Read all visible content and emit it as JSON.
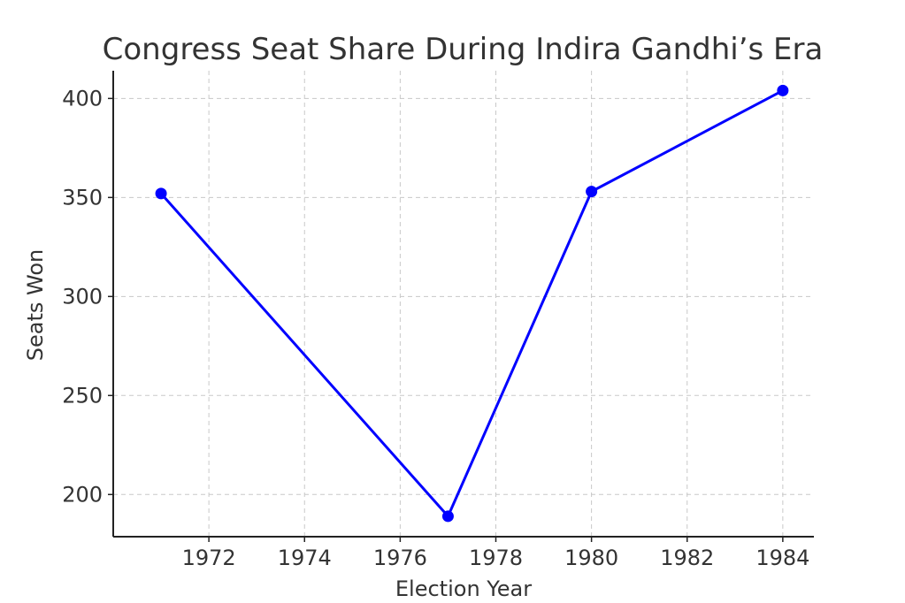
{
  "chart_data": {
    "type": "line",
    "title": "Congress Seat Share During Indira Gandhi’s Era",
    "xlabel": "Election Year",
    "ylabel": "Seats Won",
    "x": [
      1971,
      1977,
      1980,
      1984
    ],
    "series": [
      {
        "values": [
          352,
          189,
          353,
          404
        ],
        "color": "#0000ff",
        "marker": "circle"
      }
    ],
    "xticks": [
      1972,
      1974,
      1976,
      1978,
      1980,
      1982,
      1984
    ],
    "yticks": [
      200,
      250,
      300,
      350,
      400
    ],
    "xlim": [
      1970.0,
      1984.65
    ],
    "ylim": [
      178.7,
      414.0
    ],
    "grid": true
  }
}
